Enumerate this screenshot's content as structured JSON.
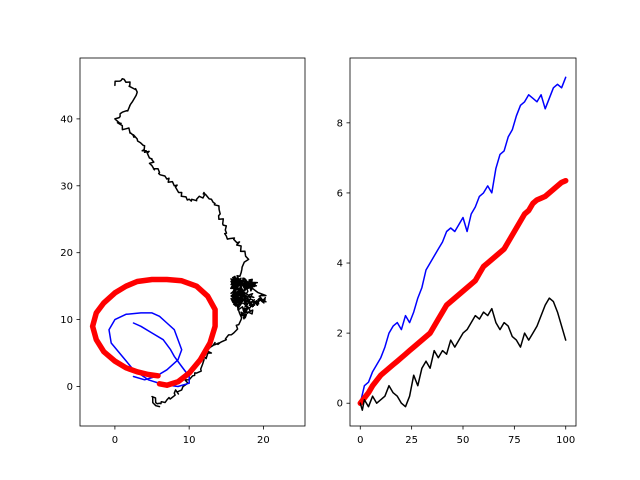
{
  "chart_data": [
    {
      "type": "line",
      "xlim": [
        -4.7,
        25.6
      ],
      "ylim": [
        -5.9,
        49.1
      ],
      "xticks": [
        {
          "v": 0,
          "label": "0"
        },
        {
          "v": 10,
          "label": "10"
        },
        {
          "v": 20,
          "label": "20"
        }
      ],
      "yticks": [
        {
          "v": 0,
          "label": "0"
        },
        {
          "v": 10,
          "label": "10"
        },
        {
          "v": 20,
          "label": "20"
        },
        {
          "v": 30,
          "label": "30"
        },
        {
          "v": 40,
          "label": "40"
        }
      ],
      "grid": false,
      "series": [
        {
          "color": "#000000",
          "linewidth": 1.5,
          "style": "random-walk",
          "points": [
            [
              6,
              -3
            ],
            [
              5,
              -1.5
            ],
            [
              6,
              -2.5
            ],
            [
              7,
              -2
            ],
            [
              8,
              -1
            ],
            [
              9,
              -0.5
            ],
            [
              10,
              1
            ],
            [
              11,
              2
            ],
            [
              12,
              4
            ],
            [
              12.5,
              5
            ],
            [
              13,
              6
            ],
            [
              14,
              6.5
            ],
            [
              15,
              7
            ],
            [
              16,
              8
            ],
            [
              17,
              10
            ],
            [
              16.5,
              12
            ],
            [
              17,
              14
            ],
            [
              16,
              16
            ],
            [
              17,
              17
            ],
            [
              18,
              19
            ],
            [
              17,
              21
            ],
            [
              16,
              22
            ],
            [
              15,
              22.5
            ],
            [
              15,
              24
            ],
            [
              14,
              25
            ],
            [
              14,
              27
            ],
            [
              13,
              28
            ],
            [
              12,
              29
            ],
            [
              11,
              28
            ],
            [
              10,
              28
            ],
            [
              9,
              29
            ],
            [
              8,
              30
            ],
            [
              7,
              31
            ],
            [
              6,
              32
            ],
            [
              5,
              33
            ],
            [
              5,
              34
            ],
            [
              4,
              35
            ],
            [
              4,
              36
            ],
            [
              3,
              37
            ],
            [
              2,
              38
            ],
            [
              1,
              39
            ],
            [
              0,
              40
            ],
            [
              1,
              41
            ],
            [
              2,
              42
            ],
            [
              3,
              44
            ],
            [
              2,
              45
            ],
            [
              1,
              46
            ],
            [
              0,
              45
            ]
          ],
          "cluster": {
            "center": [
              19.5,
              13
            ],
            "spread": [
              3.5,
              5
            ]
          }
        },
        {
          "color": "#0000ff",
          "linewidth": 1.5,
          "points": [
            [
              2.5,
              9.5
            ],
            [
              3.5,
              9
            ],
            [
              5,
              8
            ],
            [
              6.5,
              7
            ],
            [
              7.5,
              5.5
            ],
            [
              8,
              4.5
            ],
            [
              9,
              3
            ],
            [
              10,
              1.5
            ],
            [
              10,
              0.5
            ],
            [
              8.5,
              0
            ],
            [
              6.5,
              0.3
            ],
            [
              4.5,
              1
            ],
            [
              2.5,
              2.5
            ],
            [
              1,
              4.5
            ],
            [
              -0.5,
              6.5
            ],
            [
              -0.8,
              8.5
            ],
            [
              0,
              10
            ],
            [
              1.5,
              10.8
            ],
            [
              3.5,
              11
            ],
            [
              5,
              11
            ],
            [
              6,
              10.5
            ],
            [
              7,
              9.5
            ],
            [
              8,
              8.5
            ],
            [
              8.5,
              7
            ],
            [
              9,
              5.5
            ],
            [
              8.5,
              4
            ],
            [
              7,
              2.5
            ],
            [
              5.5,
              1.5
            ],
            [
              4,
              1
            ],
            [
              2.5,
              1.5
            ]
          ]
        },
        {
          "color": "#ff0000",
          "linewidth": 5.5,
          "points": [
            [
              5.8,
              1.6
            ],
            [
              4.5,
              1.8
            ],
            [
              3,
              2.2
            ],
            [
              1.5,
              2.8
            ],
            [
              0,
              3.8
            ],
            [
              -1.5,
              5.2
            ],
            [
              -2.5,
              7
            ],
            [
              -3,
              9
            ],
            [
              -2.5,
              11
            ],
            [
              -1.5,
              12.5
            ],
            [
              0,
              14
            ],
            [
              1.5,
              15
            ],
            [
              3,
              15.7
            ],
            [
              5,
              16
            ],
            [
              7,
              16
            ],
            [
              9,
              15.8
            ],
            [
              11,
              15
            ],
            [
              12.5,
              13.5
            ],
            [
              13.5,
              11.5
            ],
            [
              13.5,
              9
            ],
            [
              12.8,
              6.5
            ],
            [
              11.5,
              4
            ],
            [
              10,
              2
            ],
            [
              8.5,
              0.7
            ],
            [
              7,
              0.2
            ],
            [
              6,
              0.4
            ]
          ]
        }
      ]
    },
    {
      "type": "line",
      "xlim": [
        -5,
        105
      ],
      "ylim": [
        -0.65,
        9.85
      ],
      "xticks": [
        {
          "v": 0,
          "label": "0"
        },
        {
          "v": 25,
          "label": "25"
        },
        {
          "v": 50,
          "label": "50"
        },
        {
          "v": 75,
          "label": "75"
        },
        {
          "v": 100,
          "label": "100"
        }
      ],
      "yticks": [
        {
          "v": 0,
          "label": "0"
        },
        {
          "v": 2,
          "label": "2"
        },
        {
          "v": 4,
          "label": "4"
        },
        {
          "v": 6,
          "label": "6"
        },
        {
          "v": 8,
          "label": "8"
        }
      ],
      "grid": false,
      "series": [
        {
          "color": "#0000ff",
          "linewidth": 1.5,
          "points": [
            [
              0,
              0
            ],
            [
              2,
              0.5
            ],
            [
              4,
              0.6
            ],
            [
              6,
              0.9
            ],
            [
              8,
              1.1
            ],
            [
              10,
              1.3
            ],
            [
              12,
              1.6
            ],
            [
              14,
              2.0
            ],
            [
              16,
              2.2
            ],
            [
              18,
              2.3
            ],
            [
              20,
              2.1
            ],
            [
              22,
              2.5
            ],
            [
              24,
              2.3
            ],
            [
              26,
              2.6
            ],
            [
              28,
              3.0
            ],
            [
              30,
              3.3
            ],
            [
              32,
              3.8
            ],
            [
              34,
              4.0
            ],
            [
              36,
              4.2
            ],
            [
              38,
              4.4
            ],
            [
              40,
              4.6
            ],
            [
              42,
              4.9
            ],
            [
              44,
              5.0
            ],
            [
              46,
              4.9
            ],
            [
              48,
              5.1
            ],
            [
              50,
              5.3
            ],
            [
              52,
              4.9
            ],
            [
              54,
              5.4
            ],
            [
              56,
              5.6
            ],
            [
              58,
              5.9
            ],
            [
              60,
              6.0
            ],
            [
              62,
              6.2
            ],
            [
              64,
              6.0
            ],
            [
              66,
              6.7
            ],
            [
              68,
              7.1
            ],
            [
              70,
              7.2
            ],
            [
              72,
              7.6
            ],
            [
              74,
              7.8
            ],
            [
              76,
              8.2
            ],
            [
              78,
              8.5
            ],
            [
              80,
              8.6
            ],
            [
              82,
              8.8
            ],
            [
              84,
              8.7
            ],
            [
              86,
              8.6
            ],
            [
              88,
              8.8
            ],
            [
              90,
              8.4
            ],
            [
              92,
              8.7
            ],
            [
              94,
              9.0
            ],
            [
              96,
              9.1
            ],
            [
              98,
              9.0
            ],
            [
              100,
              9.3
            ]
          ]
        },
        {
          "color": "#ff0000",
          "linewidth": 5.5,
          "points": [
            [
              0,
              0
            ],
            [
              2,
              0.15
            ],
            [
              4,
              0.3
            ],
            [
              6,
              0.5
            ],
            [
              8,
              0.65
            ],
            [
              10,
              0.8
            ],
            [
              12,
              0.9
            ],
            [
              14,
              1.0
            ],
            [
              16,
              1.1
            ],
            [
              18,
              1.2
            ],
            [
              20,
              1.3
            ],
            [
              22,
              1.4
            ],
            [
              24,
              1.5
            ],
            [
              26,
              1.6
            ],
            [
              28,
              1.7
            ],
            [
              30,
              1.8
            ],
            [
              32,
              1.9
            ],
            [
              34,
              2.0
            ],
            [
              36,
              2.2
            ],
            [
              38,
              2.4
            ],
            [
              40,
              2.6
            ],
            [
              42,
              2.8
            ],
            [
              44,
              2.9
            ],
            [
              46,
              3.0
            ],
            [
              48,
              3.1
            ],
            [
              50,
              3.2
            ],
            [
              52,
              3.3
            ],
            [
              54,
              3.4
            ],
            [
              56,
              3.5
            ],
            [
              58,
              3.7
            ],
            [
              60,
              3.9
            ],
            [
              62,
              4.0
            ],
            [
              64,
              4.1
            ],
            [
              66,
              4.2
            ],
            [
              68,
              4.3
            ],
            [
              70,
              4.4
            ],
            [
              72,
              4.6
            ],
            [
              74,
              4.8
            ],
            [
              76,
              5.0
            ],
            [
              78,
              5.2
            ],
            [
              80,
              5.4
            ],
            [
              82,
              5.5
            ],
            [
              84,
              5.7
            ],
            [
              86,
              5.8
            ],
            [
              88,
              5.85
            ],
            [
              90,
              5.9
            ],
            [
              92,
              6.0
            ],
            [
              94,
              6.1
            ],
            [
              96,
              6.2
            ],
            [
              98,
              6.3
            ],
            [
              100,
              6.35
            ]
          ]
        },
        {
          "color": "#000000",
          "linewidth": 1.5,
          "points": [
            [
              0,
              0
            ],
            [
              1,
              -0.2
            ],
            [
              2,
              0.1
            ],
            [
              4,
              -0.1
            ],
            [
              6,
              0.2
            ],
            [
              8,
              0
            ],
            [
              10,
              0.1
            ],
            [
              12,
              0.2
            ],
            [
              14,
              0.5
            ],
            [
              16,
              0.3
            ],
            [
              18,
              0.2
            ],
            [
              20,
              0
            ],
            [
              22,
              -0.1
            ],
            [
              24,
              0.2
            ],
            [
              26,
              0.8
            ],
            [
              28,
              0.5
            ],
            [
              30,
              1.0
            ],
            [
              32,
              1.2
            ],
            [
              34,
              1.0
            ],
            [
              36,
              1.5
            ],
            [
              38,
              1.3
            ],
            [
              40,
              1.5
            ],
            [
              42,
              1.4
            ],
            [
              44,
              1.8
            ],
            [
              46,
              1.6
            ],
            [
              48,
              1.8
            ],
            [
              50,
              2.0
            ],
            [
              52,
              2.1
            ],
            [
              54,
              2.3
            ],
            [
              56,
              2.5
            ],
            [
              58,
              2.4
            ],
            [
              60,
              2.6
            ],
            [
              62,
              2.5
            ],
            [
              64,
              2.7
            ],
            [
              66,
              2.3
            ],
            [
              68,
              2.1
            ],
            [
              70,
              2.3
            ],
            [
              72,
              2.2
            ],
            [
              74,
              1.9
            ],
            [
              76,
              1.8
            ],
            [
              78,
              1.6
            ],
            [
              80,
              2.0
            ],
            [
              82,
              1.8
            ],
            [
              84,
              2.0
            ],
            [
              86,
              2.2
            ],
            [
              88,
              2.5
            ],
            [
              90,
              2.8
            ],
            [
              92,
              3.0
            ],
            [
              94,
              2.9
            ],
            [
              96,
              2.6
            ],
            [
              98,
              2.2
            ],
            [
              100,
              1.8
            ]
          ]
        }
      ]
    }
  ]
}
